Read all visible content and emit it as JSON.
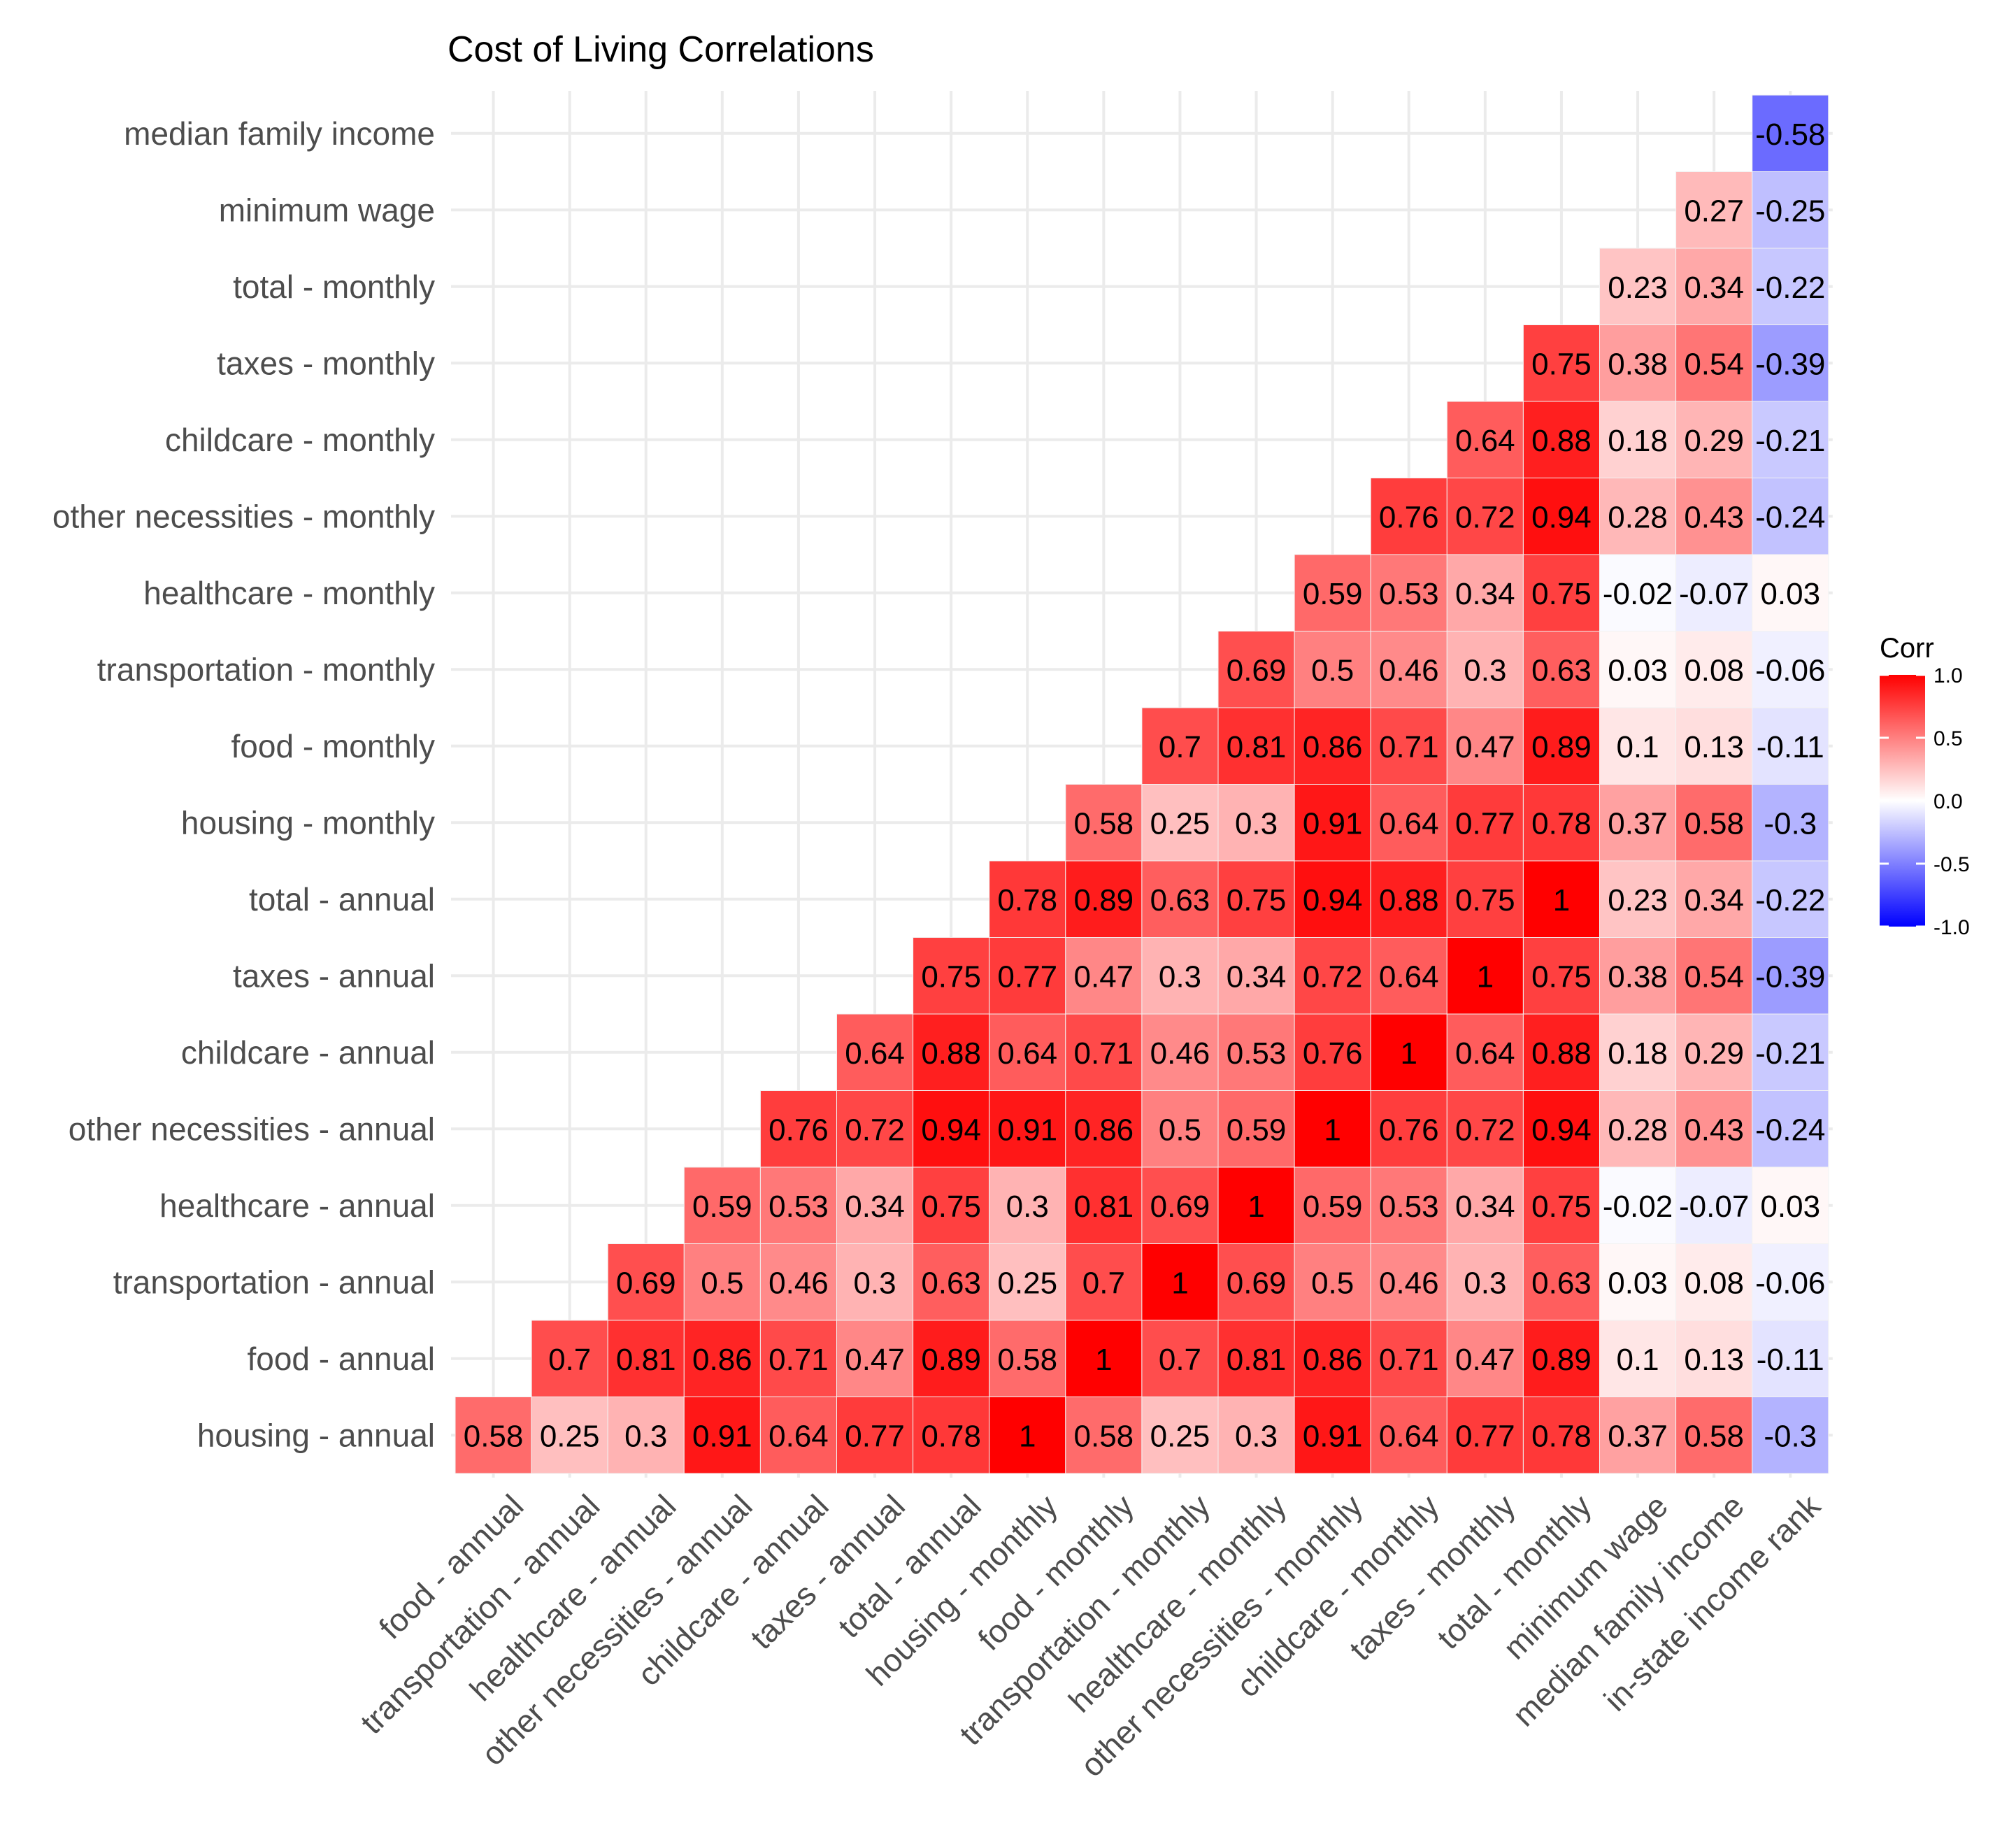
{
  "chart_data": {
    "type": "heatmap",
    "title": "Cost of Living Correlations",
    "x_categories": [
      "food - annual",
      "transportation - annual",
      "healthcare - annual",
      "other necessities - annual",
      "childcare - annual",
      "taxes - annual",
      "total - annual",
      "housing - monthly",
      "food - monthly",
      "transportation - monthly",
      "healthcare - monthly",
      "other necessities - monthly",
      "childcare - monthly",
      "taxes - monthly",
      "total - monthly",
      "minimum wage",
      "median family income",
      "in-state income rank"
    ],
    "y_categories": [
      "housing - annual",
      "food - annual",
      "transportation - annual",
      "healthcare - annual",
      "other necessities - annual",
      "childcare - annual",
      "taxes - annual",
      "total - annual",
      "housing - monthly",
      "food - monthly",
      "transportation - monthly",
      "healthcare - monthly",
      "other necessities - monthly",
      "childcare - monthly",
      "taxes - monthly",
      "total - monthly",
      "minimum wage",
      "median family income"
    ],
    "values": [
      [
        0.58,
        0.25,
        0.3,
        0.91,
        0.64,
        0.77,
        0.78,
        1,
        0.58,
        0.25,
        0.3,
        0.91,
        0.64,
        0.77,
        0.78,
        0.37,
        0.58,
        -0.3
      ],
      [
        null,
        0.7,
        0.81,
        0.86,
        0.71,
        0.47,
        0.89,
        0.58,
        1,
        0.7,
        0.81,
        0.86,
        0.71,
        0.47,
        0.89,
        0.1,
        0.13,
        -0.11
      ],
      [
        null,
        null,
        0.69,
        0.5,
        0.46,
        0.3,
        0.63,
        0.25,
        0.7,
        1,
        0.69,
        0.5,
        0.46,
        0.3,
        0.63,
        0.03,
        0.08,
        -0.06
      ],
      [
        null,
        null,
        null,
        0.59,
        0.53,
        0.34,
        0.75,
        0.3,
        0.81,
        0.69,
        1,
        0.59,
        0.53,
        0.34,
        0.75,
        -0.02,
        -0.07,
        0.03
      ],
      [
        null,
        null,
        null,
        null,
        0.76,
        0.72,
        0.94,
        0.91,
        0.86,
        0.5,
        0.59,
        1,
        0.76,
        0.72,
        0.94,
        0.28,
        0.43,
        -0.24
      ],
      [
        null,
        null,
        null,
        null,
        null,
        0.64,
        0.88,
        0.64,
        0.71,
        0.46,
        0.53,
        0.76,
        1,
        0.64,
        0.88,
        0.18,
        0.29,
        -0.21
      ],
      [
        null,
        null,
        null,
        null,
        null,
        null,
        0.75,
        0.77,
        0.47,
        0.3,
        0.34,
        0.72,
        0.64,
        1,
        0.75,
        0.38,
        0.54,
        -0.39
      ],
      [
        null,
        null,
        null,
        null,
        null,
        null,
        null,
        0.78,
        0.89,
        0.63,
        0.75,
        0.94,
        0.88,
        0.75,
        1,
        0.23,
        0.34,
        -0.22
      ],
      [
        null,
        null,
        null,
        null,
        null,
        null,
        null,
        null,
        0.58,
        0.25,
        0.3,
        0.91,
        0.64,
        0.77,
        0.78,
        0.37,
        0.58,
        -0.3
      ],
      [
        null,
        null,
        null,
        null,
        null,
        null,
        null,
        null,
        null,
        0.7,
        0.81,
        0.86,
        0.71,
        0.47,
        0.89,
        0.1,
        0.13,
        -0.11
      ],
      [
        null,
        null,
        null,
        null,
        null,
        null,
        null,
        null,
        null,
        null,
        0.69,
        0.5,
        0.46,
        0.3,
        0.63,
        0.03,
        0.08,
        -0.06
      ],
      [
        null,
        null,
        null,
        null,
        null,
        null,
        null,
        null,
        null,
        null,
        null,
        0.59,
        0.53,
        0.34,
        0.75,
        -0.02,
        -0.07,
        0.03
      ],
      [
        null,
        null,
        null,
        null,
        null,
        null,
        null,
        null,
        null,
        null,
        null,
        null,
        0.76,
        0.72,
        0.94,
        0.28,
        0.43,
        -0.24
      ],
      [
        null,
        null,
        null,
        null,
        null,
        null,
        null,
        null,
        null,
        null,
        null,
        null,
        null,
        0.64,
        0.88,
        0.18,
        0.29,
        -0.21
      ],
      [
        null,
        null,
        null,
        null,
        null,
        null,
        null,
        null,
        null,
        null,
        null,
        null,
        null,
        null,
        0.75,
        0.38,
        0.54,
        -0.39
      ],
      [
        null,
        null,
        null,
        null,
        null,
        null,
        null,
        null,
        null,
        null,
        null,
        null,
        null,
        null,
        null,
        0.23,
        0.34,
        -0.22
      ],
      [
        null,
        null,
        null,
        null,
        null,
        null,
        null,
        null,
        null,
        null,
        null,
        null,
        null,
        null,
        null,
        null,
        0.27,
        -0.25
      ],
      [
        null,
        null,
        null,
        null,
        null,
        null,
        null,
        null,
        null,
        null,
        null,
        null,
        null,
        null,
        null,
        null,
        null,
        -0.58
      ]
    ],
    "value_labels": [
      [
        "0.58",
        "0.25",
        "0.3",
        "0.91",
        "0.64",
        "0.77",
        "0.78",
        "1",
        "0.58",
        "0.25",
        "0.3",
        "0.91",
        "0.64",
        "0.77",
        "0.78",
        "0.37",
        "0.58",
        "-0.3"
      ],
      [
        "",
        "0.7",
        "0.81",
        "0.86",
        "0.71",
        "0.47",
        "0.89",
        "0.58",
        "1",
        "0.7",
        "0.81",
        "0.86",
        "0.71",
        "0.47",
        "0.89",
        "0.1",
        "0.13",
        "-0.11"
      ],
      [
        "",
        "",
        "0.69",
        "0.5",
        "0.46",
        "0.3",
        "0.63",
        "0.25",
        "0.7",
        "1",
        "0.69",
        "0.5",
        "0.46",
        "0.3",
        "0.63",
        "0.03",
        "0.08",
        "-0.06"
      ],
      [
        "",
        "",
        "",
        "0.59",
        "0.53",
        "0.34",
        "0.75",
        "0.3",
        "0.81",
        "0.69",
        "1",
        "0.59",
        "0.53",
        "0.34",
        "0.75",
        "-0.02",
        "-0.07",
        "0.03"
      ],
      [
        "",
        "",
        "",
        "",
        "0.76",
        "0.72",
        "0.94",
        "0.91",
        "0.86",
        "0.5",
        "0.59",
        "1",
        "0.76",
        "0.72",
        "0.94",
        "0.28",
        "0.43",
        "-0.24"
      ],
      [
        "",
        "",
        "",
        "",
        "",
        "0.64",
        "0.88",
        "0.64",
        "0.71",
        "0.46",
        "0.53",
        "0.76",
        "1",
        "0.64",
        "0.88",
        "0.18",
        "0.29",
        "-0.21"
      ],
      [
        "",
        "",
        "",
        "",
        "",
        "",
        "0.75",
        "0.77",
        "0.47",
        "0.3",
        "0.34",
        "0.72",
        "0.64",
        "1",
        "0.75",
        "0.38",
        "0.54",
        "-0.39"
      ],
      [
        "",
        "",
        "",
        "",
        "",
        "",
        "",
        "0.78",
        "0.89",
        "0.63",
        "0.75",
        "0.94",
        "0.88",
        "0.75",
        "1",
        "0.23",
        "0.34",
        "-0.22"
      ],
      [
        "",
        "",
        "",
        "",
        "",
        "",
        "",
        "",
        "0.58",
        "0.25",
        "0.3",
        "0.91",
        "0.64",
        "0.77",
        "0.78",
        "0.37",
        "0.58",
        "-0.3"
      ],
      [
        "",
        "",
        "",
        "",
        "",
        "",
        "",
        "",
        "",
        "0.7",
        "0.81",
        "0.86",
        "0.71",
        "0.47",
        "0.89",
        "0.1",
        "0.13",
        "-0.11"
      ],
      [
        "",
        "",
        "",
        "",
        "",
        "",
        "",
        "",
        "",
        "",
        "0.69",
        "0.5",
        "0.46",
        "0.3",
        "0.63",
        "0.03",
        "0.08",
        "-0.06"
      ],
      [
        "",
        "",
        "",
        "",
        "",
        "",
        "",
        "",
        "",
        "",
        "",
        "0.59",
        "0.53",
        "0.34",
        "0.75",
        "-0.02",
        "-0.07",
        "0.03"
      ],
      [
        "",
        "",
        "",
        "",
        "",
        "",
        "",
        "",
        "",
        "",
        "",
        "",
        "0.76",
        "0.72",
        "0.94",
        "0.28",
        "0.43",
        "-0.24"
      ],
      [
        "",
        "",
        "",
        "",
        "",
        "",
        "",
        "",
        "",
        "",
        "",
        "",
        "",
        "0.64",
        "0.88",
        "0.18",
        "0.29",
        "-0.21"
      ],
      [
        "",
        "",
        "",
        "",
        "",
        "",
        "",
        "",
        "",
        "",
        "",
        "",
        "",
        "",
        "0.75",
        "0.38",
        "0.54",
        "-0.39"
      ],
      [
        "",
        "",
        "",
        "",
        "",
        "",
        "",
        "",
        "",
        "",
        "",
        "",
        "",
        "",
        "",
        "0.23",
        "0.34",
        "-0.22"
      ],
      [
        "",
        "",
        "",
        "",
        "",
        "",
        "",
        "",
        "",
        "",
        "",
        "",
        "",
        "",
        "",
        "",
        "0.27",
        "-0.25"
      ],
      [
        "",
        "",
        "",
        "",
        "",
        "",
        "",
        "",
        "",
        "",
        "",
        "",
        "",
        "",
        "",
        "",
        "",
        "-0.58"
      ]
    ],
    "color_scale": {
      "low": "#0000ff",
      "mid": "#ffffff",
      "high": "#ff0000",
      "limits": [
        -1,
        1
      ]
    },
    "legend": {
      "title": "Corr",
      "position": "right",
      "breaks": [
        1.0,
        0.5,
        0.0,
        -0.5,
        -1.0
      ],
      "labels": [
        "1.0",
        "0.5",
        "0.0",
        "-0.5",
        "-1.0"
      ]
    },
    "grid": true,
    "grid_color": "#ebebeb",
    "text_color": "#000000",
    "axis_label_color": "#4d4d4d"
  }
}
